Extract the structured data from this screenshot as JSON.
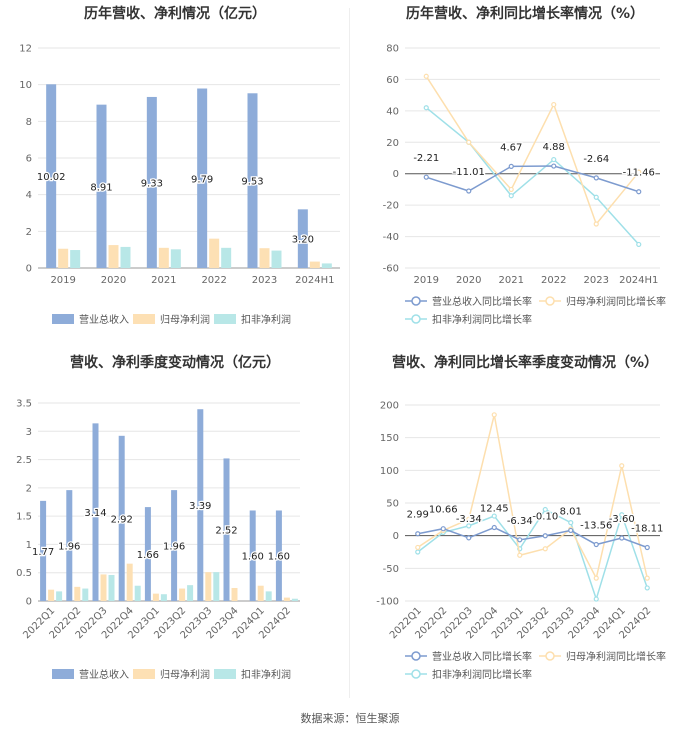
{
  "chart_data": [
    {
      "type": "bar",
      "title": "历年营收、净利情况（亿元）",
      "categories": [
        "2019",
        "2020",
        "2021",
        "2022",
        "2023",
        "2024H1"
      ],
      "ylim": [
        0,
        12
      ],
      "yticks": [
        0,
        2,
        4,
        6,
        8,
        10,
        12
      ],
      "series": [
        {
          "name": "营业总收入",
          "color": "#8eacd9",
          "values": [
            10.02,
            8.91,
            9.33,
            9.79,
            9.53,
            3.2
          ],
          "labels": [
            "10.02",
            "8.91",
            "9.33",
            "9.79",
            "9.53",
            "3.20"
          ]
        },
        {
          "name": "归母净利润",
          "color": "#fde0b4",
          "values": [
            1.05,
            1.25,
            1.1,
            1.6,
            1.08,
            0.35
          ]
        },
        {
          "name": "扣非净利润",
          "color": "#b8e7e7",
          "values": [
            0.98,
            1.15,
            1.02,
            1.1,
            0.95,
            0.25
          ]
        }
      ],
      "grid": true,
      "legend": "bottom"
    },
    {
      "type": "line",
      "title": "历年营收、净利同比增长率情况（%）",
      "categories": [
        "2019",
        "2020",
        "2021",
        "2022",
        "2023",
        "2024H1"
      ],
      "ylim": [
        -60,
        80
      ],
      "yticks": [
        -60,
        -40,
        -20,
        0,
        20,
        40,
        60,
        80
      ],
      "series": [
        {
          "name": "营业总收入同比增长率",
          "color": "#7d9bcf",
          "values": [
            -2.21,
            -11.01,
            4.67,
            4.88,
            -2.64,
            -11.46
          ],
          "labels": [
            "-2.21",
            "-11.01",
            "4.67",
            "4.88",
            "-2.64",
            "-11.46"
          ]
        },
        {
          "name": "归母净利润同比增长率",
          "color": "#fddfae",
          "values": [
            62,
            20,
            -10,
            44,
            -32,
            1
          ]
        },
        {
          "name": "扣非净利润同比增长率",
          "color": "#9fe0e8",
          "values": [
            42,
            20,
            -14,
            9,
            -15,
            -45
          ]
        }
      ],
      "grid": true,
      "legend": "bottom"
    },
    {
      "type": "bar",
      "title": "营收、净利季度变动情况（亿元）",
      "categories": [
        "2022Q1",
        "2022Q2",
        "2022Q3",
        "2022Q4",
        "2023Q1",
        "2023Q2",
        "2023Q3",
        "2023Q4",
        "2024Q1",
        "2024Q2"
      ],
      "ylim": [
        0,
        3.5
      ],
      "yticks": [
        0,
        0.5,
        1,
        1.5,
        2,
        2.5,
        3,
        3.5
      ],
      "series": [
        {
          "name": "营业总收入",
          "color": "#8eacd9",
          "values": [
            1.77,
            1.96,
            3.14,
            2.92,
            1.66,
            1.96,
            3.39,
            2.52,
            1.6,
            1.6
          ],
          "labels": [
            "1.77",
            "1.96",
            "3.14",
            "2.92",
            "1.66",
            "1.96",
            "3.39",
            "2.52",
            "1.60",
            "1.60"
          ]
        },
        {
          "name": "归母净利润",
          "color": "#fde0b4",
          "values": [
            0.2,
            0.25,
            0.47,
            0.66,
            0.13,
            0.22,
            0.51,
            0.23,
            0.27,
            0.06
          ]
        },
        {
          "name": "扣非净利润",
          "color": "#b8e7e7",
          "values": [
            0.17,
            0.22,
            0.46,
            0.27,
            0.12,
            0.28,
            0.51,
            0.0,
            0.17,
            0.04
          ]
        }
      ],
      "grid": true,
      "legend": "bottom"
    },
    {
      "type": "line",
      "title": "营收、净利同比增长率季度变动情况（%）",
      "categories": [
        "2022Q1",
        "2022Q2",
        "2022Q3",
        "2022Q4",
        "2023Q1",
        "2023Q2",
        "2023Q3",
        "2023Q4",
        "2024Q1",
        "2024Q2"
      ],
      "ylim": [
        -100,
        200
      ],
      "yticks": [
        -100,
        -50,
        0,
        50,
        100,
        150,
        200
      ],
      "series": [
        {
          "name": "营业总收入同比增长率",
          "color": "#7d9bcf",
          "values": [
            2.99,
            10.66,
            -3.34,
            12.45,
            -6.34,
            -0.1,
            8.01,
            -13.56,
            -3.6,
            -18.11
          ],
          "labels": [
            "2.99",
            "10.66",
            "-3.34",
            "12.45",
            "-6.34",
            "-0.10",
            "8.01",
            "-13.56",
            "-3.60",
            "-18.11"
          ]
        },
        {
          "name": "归母净利润同比增长率",
          "color": "#fddfae",
          "values": [
            -18,
            8,
            25,
            185,
            -30,
            -20,
            10,
            -65,
            107,
            -65
          ]
        },
        {
          "name": "扣非净利润同比增长率",
          "color": "#9fe0e8",
          "values": [
            -25,
            5,
            15,
            30,
            -20,
            40,
            20,
            -97,
            32,
            -80
          ]
        }
      ],
      "grid": true,
      "legend": "bottom"
    }
  ],
  "footer": "数据来源：恒生聚源"
}
